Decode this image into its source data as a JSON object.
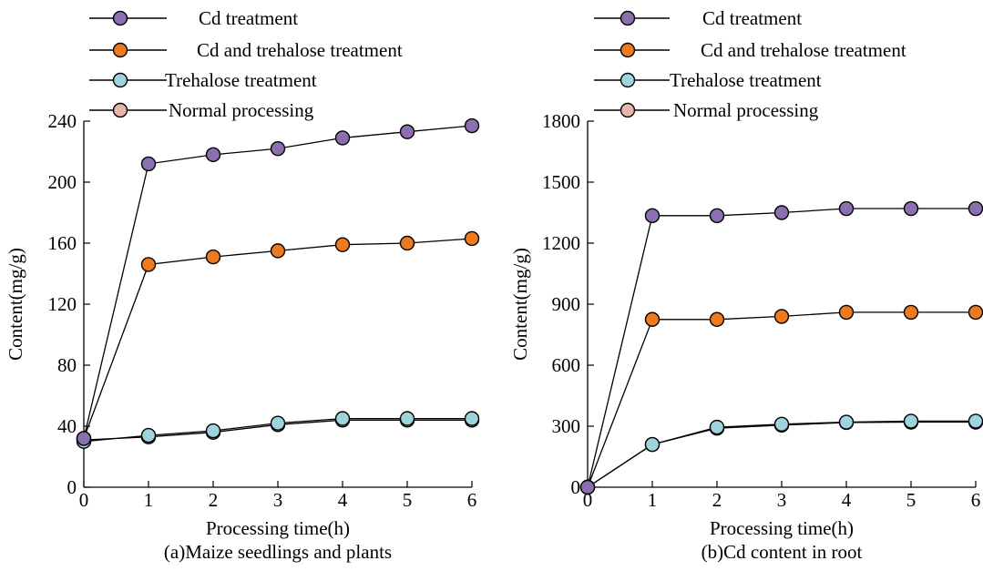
{
  "chart_data": [
    {
      "type": "line",
      "title": "(a)Maize seedlings and plants",
      "xlabel": "Processing time(h)",
      "ylabel": "Content(mg/g)",
      "xlim": [
        0,
        6
      ],
      "ylim": [
        0,
        240
      ],
      "xticks": [
        0,
        1,
        2,
        3,
        4,
        5,
        6
      ],
      "yticks": [
        0,
        40,
        80,
        120,
        160,
        200,
        240
      ],
      "legend_position": "top-left (above plot)",
      "grid": false,
      "x": [
        0,
        1,
        2,
        3,
        4,
        5,
        6
      ],
      "series": [
        {
          "name": "Cd treatment",
          "color": "#8b6fae",
          "values": [
            32,
            212,
            218,
            222,
            229,
            233,
            237
          ]
        },
        {
          "name": "Cd and trehalose treatment",
          "color": "#ee7a1f",
          "values": [
            32,
            146,
            151,
            155,
            159,
            160,
            163
          ]
        },
        {
          "name": "Trehalose treatment",
          "color": "#9fd4dc",
          "values": [
            30,
            34,
            37,
            42,
            45,
            45,
            45
          ]
        },
        {
          "name": "Normal processing",
          "color": "#e6b6ad",
          "values": [
            31,
            33,
            36,
            41,
            44,
            44,
            44
          ]
        }
      ]
    },
    {
      "type": "line",
      "title": "(b)Cd content in root",
      "xlabel": "Processing time(h)",
      "ylabel": "Content(mg/g)",
      "xlim": [
        0,
        6
      ],
      "ylim": [
        0,
        1800
      ],
      "xticks": [
        0,
        1,
        2,
        3,
        4,
        5,
        6
      ],
      "yticks": [
        0,
        300,
        600,
        900,
        1200,
        1500,
        1800
      ],
      "legend_position": "top-left (above plot)",
      "grid": false,
      "x": [
        0,
        1,
        2,
        3,
        4,
        5,
        6
      ],
      "series": [
        {
          "name": "Cd treatment",
          "color": "#8b6fae",
          "values": [
            0,
            1335,
            1335,
            1350,
            1370,
            1370,
            1370
          ]
        },
        {
          "name": "Cd and trehalose treatment",
          "color": "#ee7a1f",
          "values": [
            0,
            825,
            825,
            840,
            860,
            860,
            860
          ]
        },
        {
          "name": "Trehalose treatment",
          "color": "#9fd4dc",
          "values": [
            0,
            210,
            295,
            310,
            320,
            325,
            325
          ]
        },
        {
          "name": "Normal processing",
          "color": "#e6b6ad",
          "values": [
            0,
            210,
            290,
            305,
            318,
            320,
            320
          ]
        }
      ]
    }
  ]
}
